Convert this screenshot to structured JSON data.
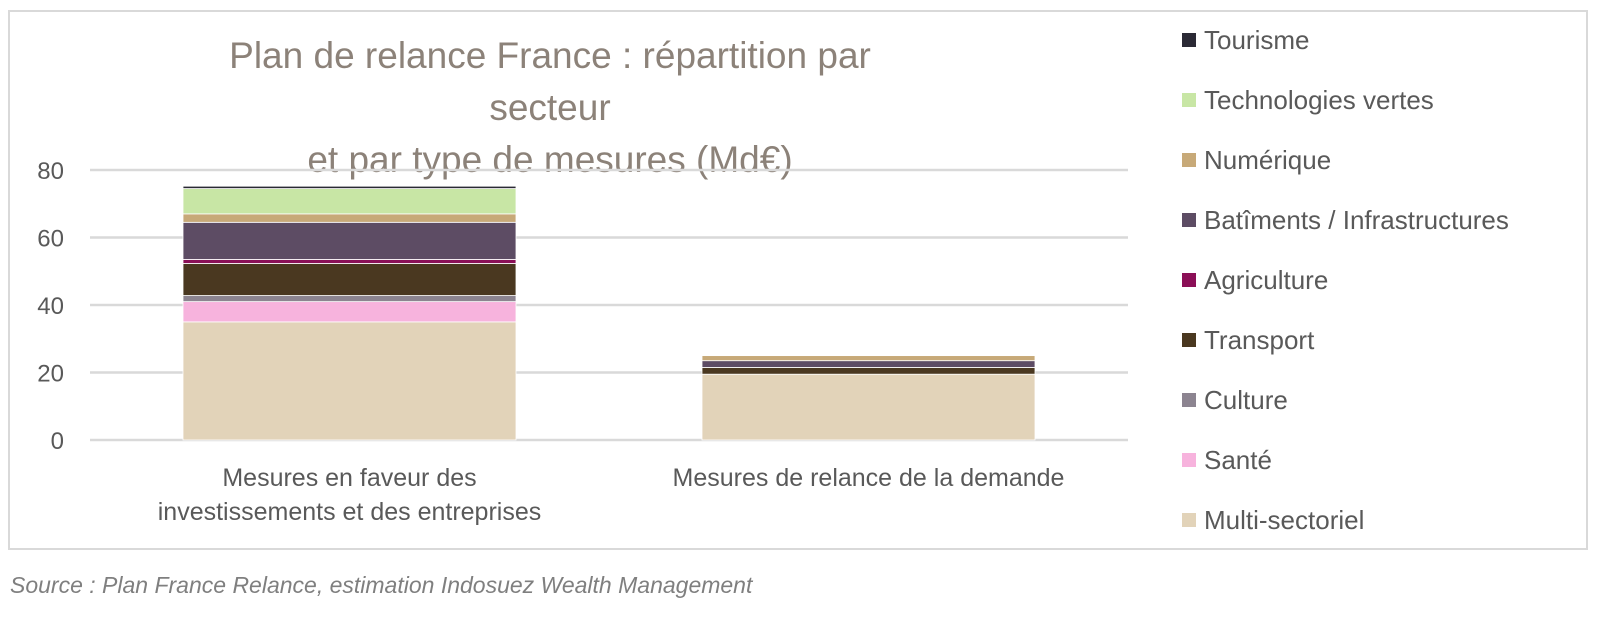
{
  "chart_data": {
    "type": "bar",
    "stacked": true,
    "title_lines": [
      "Plan de relance France : répartition par secteur",
      "et par type de mesures (Md€)"
    ],
    "categories": [
      [
        "Mesures en faveur des",
        "investissements et des entreprises"
      ],
      [
        "Mesures de relance de la demande"
      ]
    ],
    "ylim": [
      0,
      80
    ],
    "yticks": [
      0,
      20,
      40,
      60,
      80
    ],
    "grid": true,
    "legend_position": "right",
    "series": [
      {
        "name": "Multi-sectoriel",
        "color": "#e2d3b9",
        "values": [
          35,
          19.5
        ]
      },
      {
        "name": "Santé",
        "color": "#f7b3dd",
        "values": [
          6,
          0
        ]
      },
      {
        "name": "Culture",
        "color": "#8c8490",
        "values": [
          1.8,
          0
        ]
      },
      {
        "name": "Transport",
        "color": "#4a3820",
        "values": [
          9.5,
          2
        ]
      },
      {
        "name": "Agriculture",
        "color": "#8b0f57",
        "values": [
          1.2,
          0
        ]
      },
      {
        "name": "Batîments / Infrastructures",
        "color": "#5d4c64",
        "values": [
          11,
          2
        ]
      },
      {
        "name": "Numérique",
        "color": "#c7a978",
        "values": [
          2.5,
          1.5
        ]
      },
      {
        "name": "Technologies vertes",
        "color": "#c8e6a5",
        "values": [
          7.5,
          0
        ]
      },
      {
        "name": "Tourisme",
        "color": "#2b2a35",
        "values": [
          0.7,
          0
        ]
      }
    ]
  },
  "source": "Source : Plan France Relance, estimation Indosuez Wealth Management"
}
